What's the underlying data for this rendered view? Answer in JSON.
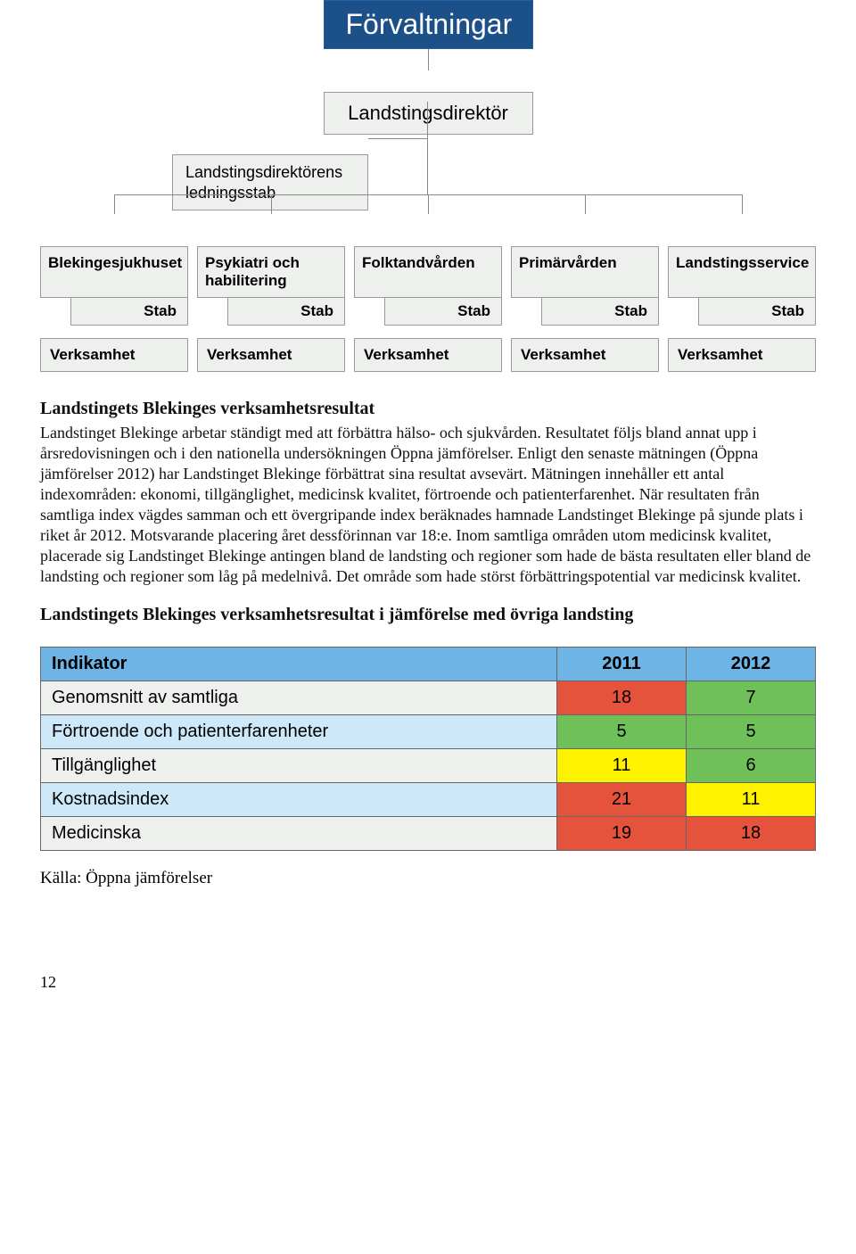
{
  "org": {
    "title": "Förvaltningar",
    "director": "Landstingsdirektör",
    "director_staff_line1": "Landstingsdirektörens",
    "director_staff_line2": "ledningsstab",
    "stab_label": "Stab",
    "verk_label": "Verksamhet",
    "departments": [
      {
        "name": "Blekingesjukhuset"
      },
      {
        "name": "Psykiatri och habilitering"
      },
      {
        "name": "Folktandvården"
      },
      {
        "name": "Primärvården"
      },
      {
        "name": "Landstingsservice"
      }
    ],
    "colors": {
      "title_bg": "#1b5089",
      "box_bg": "#eef0ee",
      "box_border": "#999999",
      "line": "#888888"
    }
  },
  "text": {
    "heading1": "Landstingets Blekinges verksamhetsresultat",
    "para1": "Landstinget Blekinge arbetar ständigt med att förbättra hälso- och sjukvården. Resultatet följs bland annat upp i årsredovisningen och i den nationella undersökningen Öppna jämförelser. Enligt den senaste mätningen (Öppna jämförelser 2012) har Landstinget Blekinge förbättrat sina resultat avsevärt. Mätningen innehåller ett antal indexområden: ekonomi, tillgänglighet, medicinsk kvalitet, förtroende och patienterfarenhet. När resultaten från samtliga index vägdes samman och ett övergripande index beräknades hamnade Landstinget Blekinge på sjunde plats i riket år 2012. Motsvarande placering året dessförinnan var 18:e. Inom samtliga områden utom medicinsk kvalitet, placerade sig Landstinget Blekinge antingen bland de landsting och regioner som hade de bästa resultaten eller bland de landsting och regioner som låg på medelnivå. Det område som hade störst förbättringspotential var medicinsk kvalitet.",
    "heading2": "Landstingets Blekinges verksamhetsresultat i jämförelse med övriga landsting",
    "source": "Källa: Öppna jämförelser",
    "page": "12"
  },
  "table": {
    "colors": {
      "header_bg": "#6eb4e4",
      "row_odd_bg": "#cde8f8",
      "row_even_bg": "#eef0ee",
      "green": "#70c05a",
      "yellow": "#fff200",
      "red": "#e6533c",
      "border": "#666666"
    },
    "header": {
      "label": "Indikator",
      "y2011": "2011",
      "y2012": "2012"
    },
    "rows": [
      {
        "label": "Genomsnitt av samtliga",
        "v2011": "18",
        "c2011": "#e6533c",
        "v2012": "7",
        "c2012": "#70c05a"
      },
      {
        "label": "Förtroende och patienterfarenheter",
        "v2011": "5",
        "c2011": "#70c05a",
        "v2012": "5",
        "c2012": "#70c05a"
      },
      {
        "label": "Tillgänglighet",
        "v2011": "11",
        "c2011": "#fff200",
        "v2012": "6",
        "c2012": "#70c05a"
      },
      {
        "label": "Kostnadsindex",
        "v2011": "21",
        "c2011": "#e6533c",
        "v2012": "11",
        "c2012": "#fff200"
      },
      {
        "label": "Medicinska",
        "v2011": "19",
        "c2011": "#e6533c",
        "v2012": "18",
        "c2012": "#e6533c"
      }
    ]
  }
}
